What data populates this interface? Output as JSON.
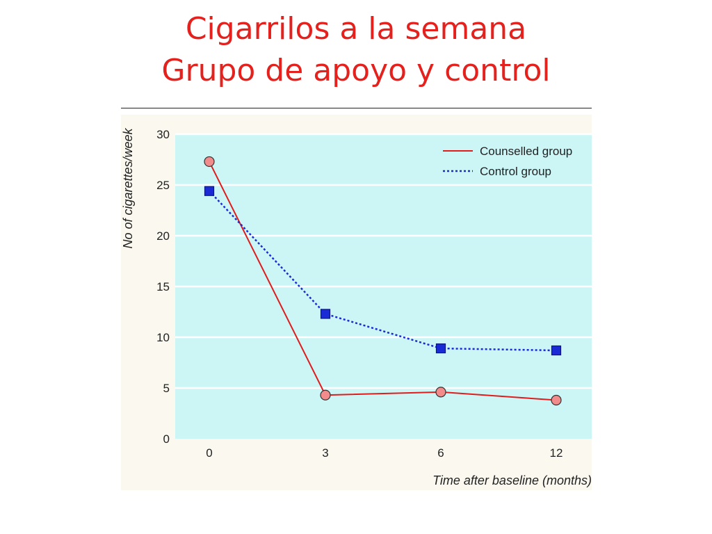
{
  "slide": {
    "title_line1": "Cigarrilos a la semana",
    "title_line2": "Grupo de apoyo y control"
  },
  "colors": {
    "title": "#e5211d",
    "plot_background": "#ccf6f6",
    "counselled": "#e11b1b",
    "counselled_marker": "#f28b8b",
    "control": "#1a2bd6"
  },
  "chart_data": {
    "type": "line",
    "title": "",
    "xlabel": "Time after baseline (months)",
    "ylabel": "No of cigarettes/week",
    "categories": [
      "0",
      "3",
      "6",
      "12"
    ],
    "yticks": [
      0,
      5,
      10,
      15,
      20,
      25,
      30
    ],
    "ylim": [
      0,
      30
    ],
    "grid": "horizontal",
    "legend_position": "top-right",
    "series": [
      {
        "name": "Counselled group",
        "style": "solid",
        "marker": "circle",
        "values": [
          27.3,
          4.3,
          4.6,
          3.8
        ]
      },
      {
        "name": "Control group",
        "style": "dotted",
        "marker": "square",
        "values": [
          24.4,
          12.3,
          8.9,
          8.7
        ]
      }
    ]
  }
}
